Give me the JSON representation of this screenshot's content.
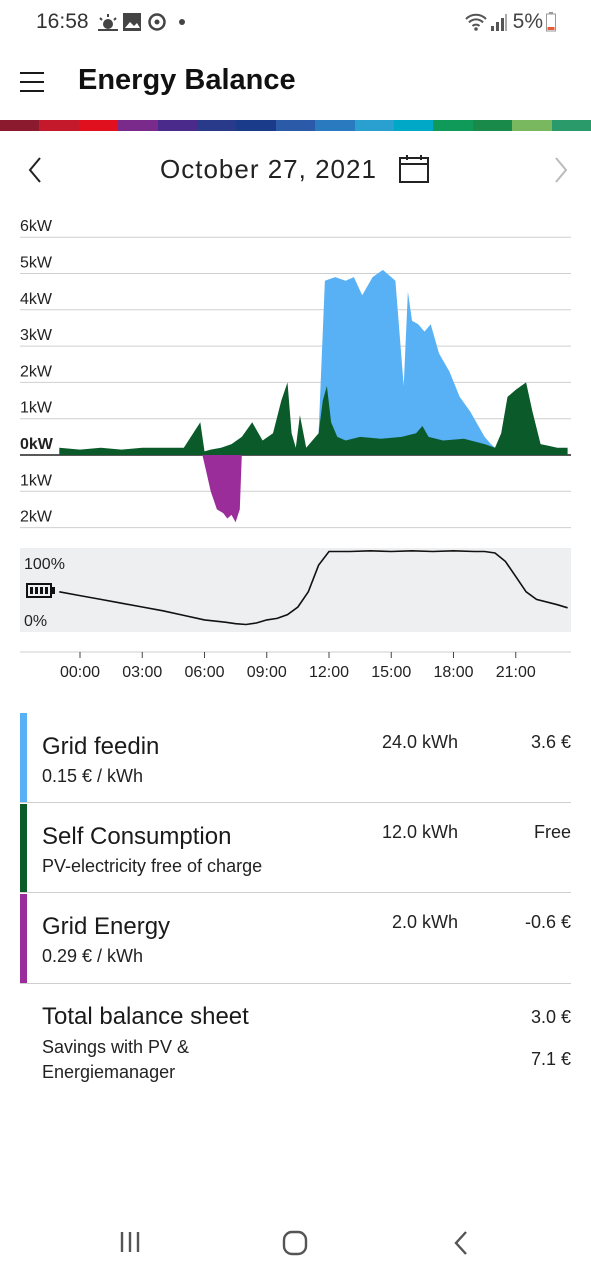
{
  "status": {
    "time": "16:58",
    "battery": "5%"
  },
  "app": {
    "title": "Energy Balance"
  },
  "date": {
    "label": "October 27, 2021"
  },
  "colors": {
    "grid_feedin": "#58b0f5",
    "self_consumption": "#0a5a2a",
    "grid_energy": "#9b2d9b"
  },
  "chart_data": {
    "type": "area",
    "power_axis": {
      "labels": [
        "6kW",
        "5kW",
        "4kW",
        "3kW",
        "2kW",
        "1kW",
        "0kW",
        "1kW",
        "2kW"
      ],
      "ylim": [
        -2,
        6
      ],
      "unit": "kW"
    },
    "soc_axis": {
      "labels": [
        "100%",
        "0%"
      ],
      "ylim": [
        0,
        100
      ]
    },
    "x_ticks": [
      "00:00",
      "03:00",
      "06:00",
      "09:00",
      "12:00",
      "15:00",
      "18:00",
      "21:00"
    ],
    "x_range_hours": [
      -1,
      23.5
    ],
    "series": [
      {
        "name": "Self Consumption",
        "color": "#0a5a2a",
        "x": [
          -1,
          0,
          1,
          2,
          3,
          4,
          5,
          5.8,
          6,
          6.3,
          6.8,
          7.3,
          7.8,
          8.3,
          8.8,
          9.3,
          9.7,
          10,
          10.2,
          10.4,
          10.6,
          10.9,
          11.2,
          11.5,
          11.7,
          11.9,
          12.1,
          12.4,
          12.8,
          13.5,
          14.5,
          15.5,
          16.2,
          16.5,
          16.8,
          17.5,
          18.5,
          19.5,
          20,
          20.3,
          20.6,
          21,
          21.5,
          21.8,
          22.2,
          22.6,
          23,
          23.5
        ],
        "values": [
          0.2,
          0.15,
          0.2,
          0.15,
          0.2,
          0.2,
          0.2,
          0.9,
          0.1,
          0.15,
          0.2,
          0.3,
          0.5,
          0.9,
          0.4,
          0.6,
          1.5,
          2.0,
          0.6,
          0.2,
          1.1,
          0.2,
          0.4,
          0.6,
          1.5,
          1.9,
          0.9,
          0.5,
          0.4,
          0.5,
          0.45,
          0.5,
          0.6,
          0.8,
          0.5,
          0.4,
          0.45,
          0.3,
          0.2,
          0.6,
          1.6,
          1.8,
          2.0,
          1.2,
          0.3,
          0.25,
          0.2,
          0.2
        ]
      },
      {
        "name": "Grid feedin",
        "color": "#58b0f5",
        "x": [
          11.5,
          11.8,
          12.3,
          12.8,
          13.2,
          13.6,
          14.1,
          14.6,
          15.2,
          15.6,
          15.8,
          16.0,
          16.3,
          16.6,
          16.9,
          17.3,
          17.8,
          18.3,
          18.8,
          19.5,
          19.8,
          20.0
        ],
        "values": [
          0.6,
          4.8,
          4.9,
          4.8,
          4.9,
          4.4,
          4.9,
          5.1,
          4.8,
          1.9,
          4.5,
          3.7,
          3.6,
          3.4,
          3.6,
          2.8,
          2.3,
          1.6,
          1.2,
          0.5,
          0.3,
          0.2
        ]
      },
      {
        "name": "Grid Energy",
        "color": "#9b2d9b",
        "x": [
          5.9,
          6.1,
          6.3,
          6.6,
          6.9,
          7.1,
          7.3,
          7.5,
          7.7,
          7.8
        ],
        "values": [
          0,
          -0.5,
          -1.0,
          -1.5,
          -1.6,
          -1.75,
          -1.65,
          -1.85,
          -1.5,
          0
        ]
      },
      {
        "name": "Battery",
        "type": "line",
        "x": [
          -1,
          0,
          1,
          2,
          3,
          4,
          5,
          6,
          7,
          7.5,
          8,
          8.5,
          9,
          9.5,
          10,
          10.5,
          11,
          11.5,
          12,
          13,
          14,
          15,
          16,
          17,
          18,
          19,
          19.5,
          20,
          20.5,
          21,
          21.5,
          22,
          23,
          23.5
        ],
        "values": [
          45,
          40,
          35,
          30,
          25,
          20,
          14,
          8,
          5,
          3,
          2,
          4,
          8,
          10,
          15,
          25,
          45,
          80,
          98,
          98,
          99,
          98,
          99,
          98,
          99,
          98,
          98,
          96,
          85,
          65,
          45,
          35,
          28,
          24
        ]
      }
    ]
  },
  "balance": {
    "rows": [
      {
        "title": "Grid feedin",
        "subtitle": "0.15 € / kWh",
        "energy": "24.0 kWh",
        "amount": "3.6 €"
      },
      {
        "title": "Self Consumption",
        "subtitle": "PV-electricity free of charge",
        "energy": "12.0 kWh",
        "amount": "Free"
      },
      {
        "title": "Grid Energy",
        "subtitle": "0.29 € / kWh",
        "energy": "2.0 kWh",
        "amount": "-0.6 €"
      }
    ],
    "total": {
      "title": "Total balance sheet",
      "total_amount": "3.0 €",
      "savings_line1": "Savings with PV &",
      "savings_line2": "Energiemanager",
      "savings_amount": "7.1 €"
    }
  }
}
